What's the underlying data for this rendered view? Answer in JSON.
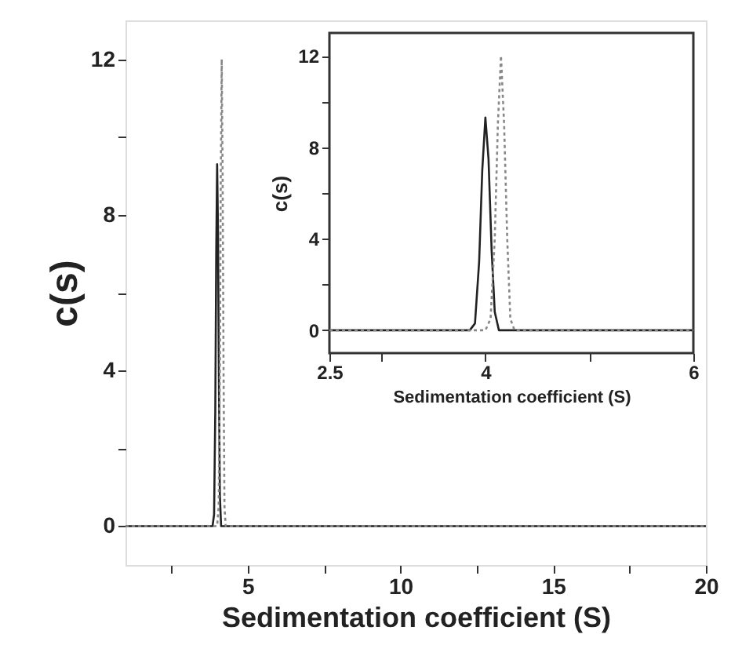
{
  "chart_data": [
    {
      "type": "line",
      "xlabel": "Sedimentation coefficient (S)",
      "ylabel": "c(s)",
      "xlim": [
        1,
        20
      ],
      "ylim": [
        -1,
        13
      ],
      "xticks": [
        {
          "value": 2.5,
          "label": null
        },
        5,
        {
          "value": 7.5,
          "label": null
        },
        10,
        {
          "value": 12.5,
          "label": null
        },
        15,
        {
          "value": 17.5,
          "label": null
        },
        20
      ],
      "yticks": [
        0,
        {
          "value": 2,
          "label": null
        },
        4,
        {
          "value": 6,
          "label": null
        },
        8,
        {
          "value": 10,
          "label": null
        },
        12
      ],
      "grid": false,
      "series": [
        {
          "color": "#222222",
          "line_style": "solid",
          "x": [
            1,
            3.85,
            3.9,
            3.94,
            3.97,
            4.0,
            4.03,
            4.06,
            4.09,
            4.13,
            20
          ],
          "values": [
            0,
            0,
            0.3,
            3,
            7,
            9.3,
            7.5,
            3.5,
            0.8,
            0,
            0
          ]
        },
        {
          "color": "#888888",
          "line_style": "dotted",
          "x": [
            1,
            4.0,
            4.05,
            4.09,
            4.12,
            4.15,
            4.18,
            4.21,
            4.24,
            4.28,
            20
          ],
          "values": [
            0,
            0,
            0.5,
            4,
            9,
            12,
            9,
            4,
            0.5,
            0,
            0
          ]
        }
      ]
    },
    {
      "type": "line",
      "xlabel": "Sedimentation coefficient (S)",
      "ylabel": "c(s)",
      "xlim": [
        2.5,
        6
      ],
      "ylim": [
        -1,
        13
      ],
      "xticks": [
        2.5,
        {
          "value": 3,
          "label": null
        },
        4,
        {
          "value": 5,
          "label": null
        },
        6
      ],
      "yticks": [
        0,
        {
          "value": 2,
          "label": null
        },
        4,
        {
          "value": 6,
          "label": null
        },
        8,
        {
          "value": 10,
          "label": null
        },
        12
      ],
      "grid": false,
      "series": [
        {
          "color": "#222222",
          "line_style": "solid",
          "x": [
            2.5,
            3.85,
            3.9,
            3.94,
            3.97,
            4.0,
            4.03,
            4.06,
            4.09,
            4.13,
            6
          ],
          "values": [
            0,
            0,
            0.3,
            3,
            7,
            9.3,
            7.5,
            3.5,
            0.8,
            0,
            0
          ]
        },
        {
          "color": "#888888",
          "line_style": "dotted",
          "x": [
            2.5,
            4.0,
            4.05,
            4.09,
            4.12,
            4.15,
            4.18,
            4.21,
            4.24,
            4.28,
            6
          ],
          "values": [
            0,
            0,
            0.5,
            4,
            9,
            12,
            9,
            4,
            0.5,
            0,
            0
          ]
        }
      ]
    }
  ]
}
